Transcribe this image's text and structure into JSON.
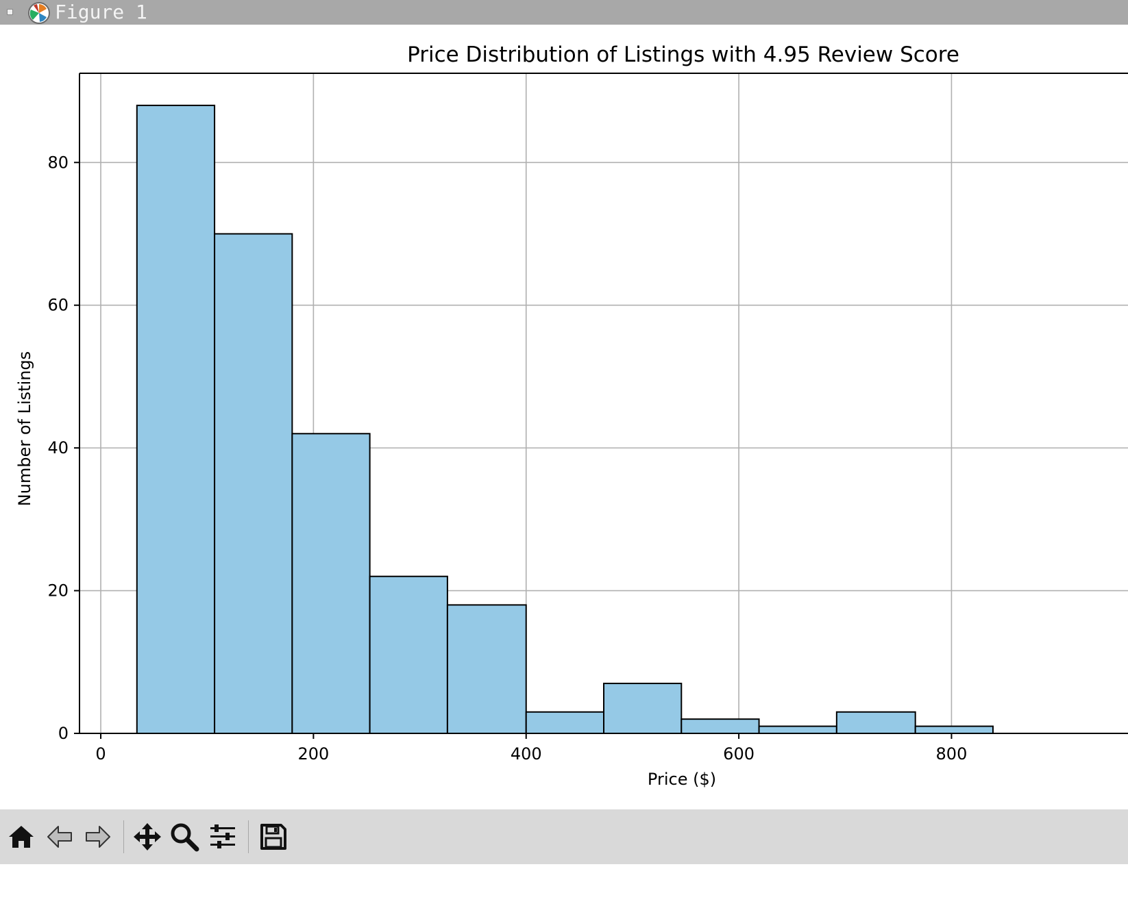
{
  "window": {
    "title": "Figure 1"
  },
  "toolbar": {
    "buttons": [
      {
        "name": "home-button",
        "icon": "home-icon"
      },
      {
        "name": "back-button",
        "icon": "arrow-left-icon"
      },
      {
        "name": "forward-button",
        "icon": "arrow-right-icon"
      },
      {
        "name": "pan-button",
        "icon": "move-icon"
      },
      {
        "name": "zoom-button",
        "icon": "magnifier-icon"
      },
      {
        "name": "configure-subplots-button",
        "icon": "sliders-icon"
      },
      {
        "name": "save-button",
        "icon": "floppy-disk-icon"
      }
    ]
  },
  "chart_data": {
    "type": "bar",
    "title": "Price Distribution of Listings with 4.95 Review Score",
    "xlabel": "Price ($)",
    "ylabel": "Number of Listings",
    "xticks": [
      0,
      200,
      400,
      600,
      800
    ],
    "yticks": [
      0,
      20,
      40,
      60,
      80
    ],
    "xlim": [
      -20,
      975
    ],
    "ylim": [
      0,
      92.5
    ],
    "grid": true,
    "bar_color": "#95c9e6",
    "edge_color": "#000000",
    "bins": [
      {
        "x0": 34,
        "x1": 107,
        "count": 88
      },
      {
        "x0": 107,
        "x1": 180,
        "count": 70
      },
      {
        "x0": 180,
        "x1": 253,
        "count": 42
      },
      {
        "x0": 253,
        "x1": 326,
        "count": 22
      },
      {
        "x0": 326,
        "x1": 400,
        "count": 18
      },
      {
        "x0": 400,
        "x1": 473,
        "count": 3
      },
      {
        "x0": 473,
        "x1": 546,
        "count": 7
      },
      {
        "x0": 546,
        "x1": 619,
        "count": 2
      },
      {
        "x0": 619,
        "x1": 692,
        "count": 1
      },
      {
        "x0": 692,
        "x1": 766,
        "count": 3
      },
      {
        "x0": 766,
        "x1": 839,
        "count": 1
      }
    ]
  }
}
